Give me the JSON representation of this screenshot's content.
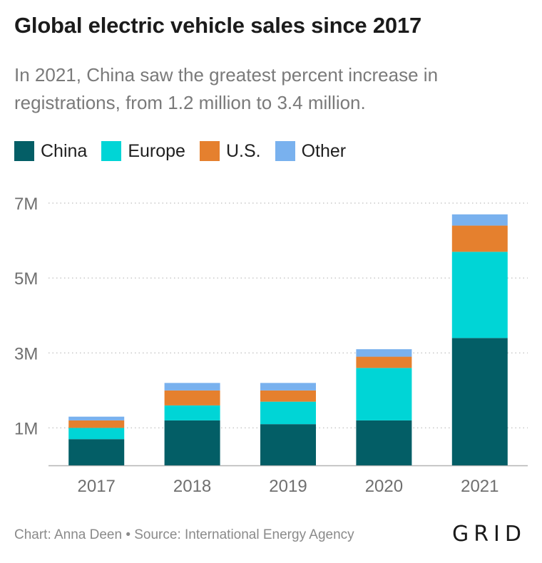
{
  "chart_data": {
    "type": "bar",
    "stacked": true,
    "title": "Global electric vehicle sales since 2017",
    "subtitle": "In 2021, China saw the greatest percent increase in registrations, from 1.2 million to 3.4 million.",
    "categories": [
      "2017",
      "2018",
      "2019",
      "2020",
      "2021"
    ],
    "series": [
      {
        "name": "China",
        "color": "#035e66",
        "values": [
          0.7,
          1.2,
          1.1,
          1.2,
          3.4
        ]
      },
      {
        "name": "Europe",
        "color": "#00d5d6",
        "values": [
          0.3,
          0.4,
          0.6,
          1.4,
          2.3
        ]
      },
      {
        "name": "U.S.",
        "color": "#e5802e",
        "values": [
          0.2,
          0.4,
          0.3,
          0.3,
          0.7
        ]
      },
      {
        "name": "Other",
        "color": "#79b1ee",
        "values": [
          0.1,
          0.2,
          0.2,
          0.2,
          0.3
        ]
      }
    ],
    "yticks": [
      {
        "value": 1,
        "label": "1M"
      },
      {
        "value": 3,
        "label": "3M"
      },
      {
        "value": 5,
        "label": "5M"
      },
      {
        "value": 7,
        "label": "7M"
      }
    ],
    "ylim": [
      0,
      7
    ],
    "xlabel": "",
    "ylabel": "",
    "grid": "horizontal dotted",
    "legend": "top-left"
  },
  "footer": {
    "credit": "Chart: Anna Deen • Source: International Energy Agency",
    "logo": "GRID"
  }
}
